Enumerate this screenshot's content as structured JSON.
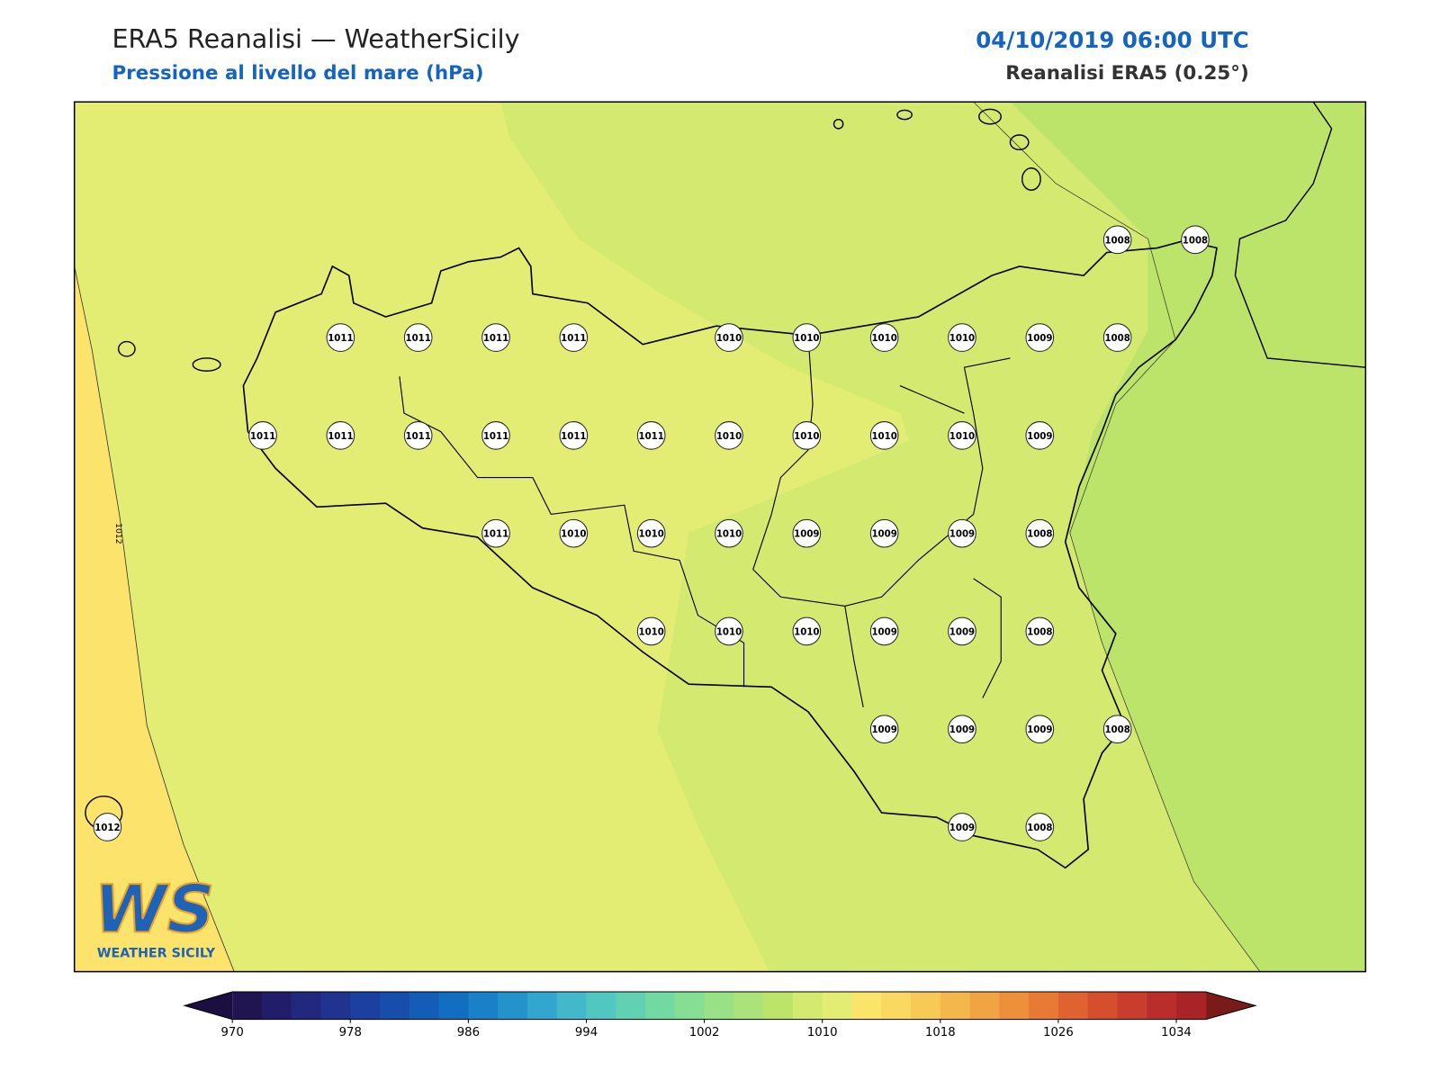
{
  "header": {
    "title": "ERA5 Reanalisi — WeatherSicily",
    "subtitle": "Pressione al livello del mare (hPa)",
    "datetime": "04/10/2019 06:00 UTC",
    "source": "Reanalisi ERA5 (0.25°)"
  },
  "stations": [
    [
      null,
      null,
      null,
      null,
      null,
      null,
      null,
      null,
      null,
      null,
      null,
      null,
      null,
      1008,
      1008
    ],
    [
      null,
      null,
      null,
      1011,
      1011,
      1011,
      1011,
      null,
      1010,
      1010,
      1010,
      1010,
      1009,
      1008,
      null
    ],
    [
      null,
      null,
      1011,
      1011,
      1011,
      1011,
      1011,
      1011,
      1010,
      1010,
      1010,
      1010,
      1009,
      null,
      null
    ],
    [
      null,
      null,
      null,
      null,
      null,
      1011,
      1010,
      1010,
      1010,
      1009,
      1009,
      1009,
      1008,
      null,
      null
    ],
    [
      null,
      null,
      null,
      null,
      null,
      null,
      null,
      1010,
      1010,
      1010,
      1009,
      1009,
      1008,
      null,
      null
    ],
    [
      null,
      null,
      null,
      null,
      null,
      null,
      null,
      null,
      null,
      null,
      1009,
      1009,
      1009,
      1008,
      null
    ],
    [
      1012,
      null,
      null,
      null,
      null,
      null,
      null,
      null,
      null,
      null,
      null,
      1009,
      1008,
      null,
      null
    ]
  ],
  "contour_label": 1012,
  "logo": {
    "mark": "WS",
    "name": "WEATHER SICILY"
  },
  "colorbar": {
    "range": [
      970,
      1036
    ],
    "ticks": [
      970,
      978,
      986,
      994,
      1002,
      1010,
      1018,
      1026,
      1034
    ],
    "under_color": "#1a0f40",
    "over_color": "#7a1a1a",
    "colors": [
      "#211551",
      "#221d6a",
      "#21287d",
      "#1f338f",
      "#1b40a0",
      "#174eac",
      "#145db6",
      "#116ec0",
      "#1a80c7",
      "#2493cc",
      "#33a6cf",
      "#42b8ca",
      "#52c6c0",
      "#62d0b2",
      "#73d9a3",
      "#86de94",
      "#98e186",
      "#abe37a",
      "#bde46a",
      "#d3e96f",
      "#e3ec73",
      "#fbe46a",
      "#fad862",
      "#f7c957",
      "#f4b74c",
      "#f1a443",
      "#ec903b",
      "#e77a35",
      "#df6330",
      "#d54e2d",
      "#c93d2c",
      "#b92e2b",
      "#a82427"
    ]
  }
}
